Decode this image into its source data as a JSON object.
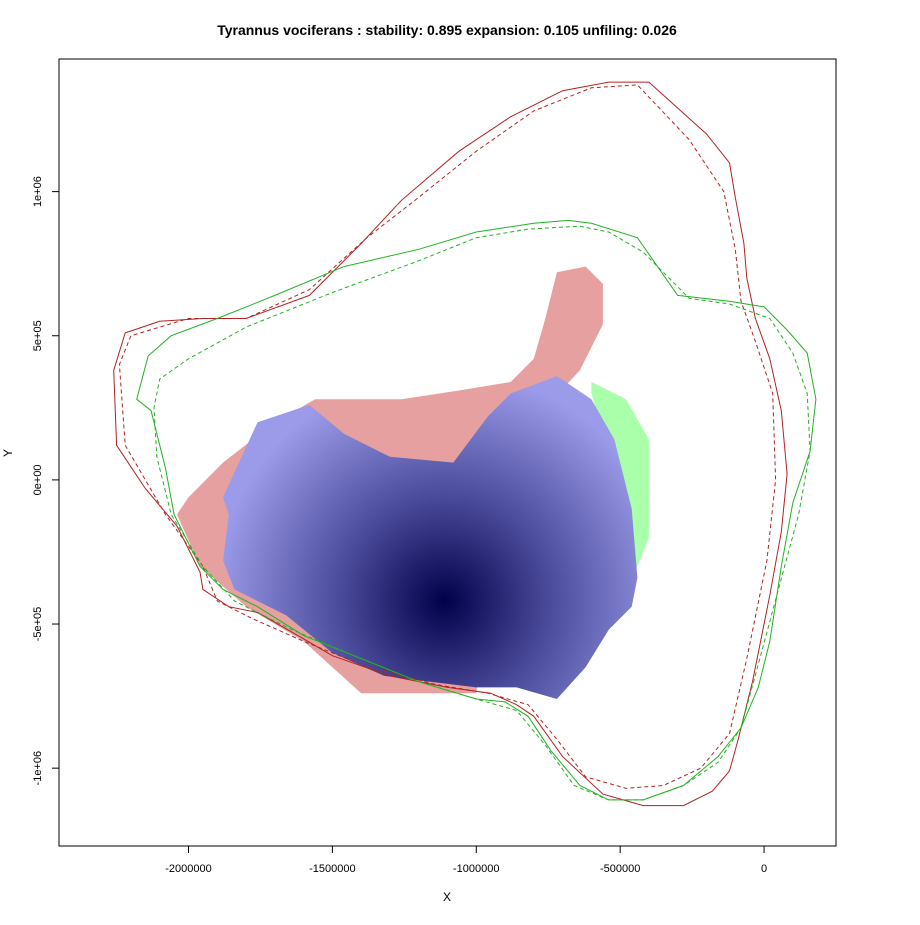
{
  "chart_data": {
    "type": "heatmap",
    "title": "Tyrannus vociferans : stability: 0.895 expansion: 0.105 unfiling: 0.026",
    "xlabel": "X",
    "ylabel": "Y",
    "xlim": [
      -2450000,
      250000
    ],
    "ylim": [
      -1270000,
      1460000
    ],
    "x_ticks": [
      {
        "value": -2000000,
        "label": "-2000000"
      },
      {
        "value": -1500000,
        "label": "-1500000"
      },
      {
        "value": -1000000,
        "label": "-1000000"
      },
      {
        "value": -500000,
        "label": "-500000"
      },
      {
        "value": 0,
        "label": "0"
      }
    ],
    "y_ticks": [
      {
        "value": -1000000,
        "label": "-1e+06"
      },
      {
        "value": -500000,
        "label": "-5e+05"
      },
      {
        "value": 0,
        "label": "0e+00"
      },
      {
        "value": 500000,
        "label": "5e+05"
      },
      {
        "value": 1000000,
        "label": "1e+06"
      }
    ],
    "colors": {
      "expansion": "#e6a0a0",
      "unfilling": "#aaffaa",
      "stability_low": "#9b9bea",
      "stability_high": "#00004a",
      "contour_red": "#b22222",
      "contour_green": "#22b222"
    },
    "regions": {
      "stability_hotspot": {
        "x": -1110000,
        "y": -420000
      },
      "expansion_blob": {
        "x": [
          -2000000,
          -1880000,
          -1700000,
          -1560000,
          -1440000,
          -1260000,
          -1060000,
          -880000,
          -800000,
          -760000,
          -720000,
          -620000,
          -560000,
          -560000,
          -640000,
          -900000,
          -1000000,
          -1400000,
          -1600000,
          -1800000,
          -1960000,
          -2040000
        ],
        "y": [
          -60000,
          60000,
          200000,
          280000,
          280000,
          280000,
          310000,
          340000,
          420000,
          560000,
          720000,
          740000,
          680000,
          540000,
          380000,
          100000,
          -740000,
          -740000,
          -560000,
          -440000,
          -300000,
          -120000
        ]
      },
      "unfilling_strip": {
        "x": [
          -600000,
          -480000,
          -400000,
          -400000,
          -440000,
          -520000,
          -640000,
          -720000,
          -600000,
          -520000,
          -540000,
          -600000
        ],
        "y": [
          340000,
          280000,
          140000,
          -200000,
          -300000,
          -460000,
          -640000,
          -780000,
          -560000,
          -380000,
          100000,
          300000
        ]
      },
      "stability_blob": {
        "x": [
          -1880000,
          -1760000,
          -1580000,
          -1460000,
          -1300000,
          -1080000,
          -960000,
          -880000,
          -720000,
          -600000,
          -520000,
          -460000,
          -440000,
          -460000,
          -540000,
          -620000,
          -720000,
          -860000,
          -1000000,
          -1160000,
          -1320000,
          -1500000,
          -1660000,
          -1840000,
          -1880000,
          -1860000
        ],
        "y": [
          -60000,
          200000,
          260000,
          160000,
          80000,
          60000,
          220000,
          300000,
          360000,
          280000,
          140000,
          -100000,
          -340000,
          -440000,
          -520000,
          -650000,
          -760000,
          -720000,
          -720000,
          -700000,
          -680000,
          -600000,
          -470000,
          -380000,
          -280000,
          -120000
        ]
      }
    },
    "series": [
      {
        "color": "#b22222",
        "dash": "solid",
        "x": [
          -1960000,
          -2040000,
          -2150000,
          -2250000,
          -2260000,
          -2220000,
          -2100000,
          -1950000,
          -1800000,
          -1580000,
          -1400000,
          -1260000,
          -1060000,
          -880000,
          -700000,
          -540000,
          -400000,
          -200000,
          -120000,
          -100000,
          -70000,
          -60000,
          -30000,
          20000,
          60000,
          80000,
          60000,
          20000,
          -40000,
          -90000,
          -120000,
          -180000,
          -280000,
          -420000,
          -560000,
          -700000,
          -800000,
          -860000,
          -950000,
          -1100000,
          -1300000,
          -1500000,
          -1620000,
          -1760000,
          -1860000,
          -1950000
        ],
        "y": [
          -320000,
          -160000,
          -30000,
          120000,
          380000,
          510000,
          550000,
          560000,
          560000,
          640000,
          820000,
          970000,
          1140000,
          1260000,
          1350000,
          1380000,
          1380000,
          1200000,
          1100000,
          980000,
          820000,
          700000,
          560000,
          420000,
          240000,
          20000,
          -180000,
          -400000,
          -700000,
          -900000,
          -1010000,
          -1080000,
          -1130000,
          -1130000,
          -1090000,
          -960000,
          -820000,
          -780000,
          -740000,
          -720000,
          -680000,
          -610000,
          -540000,
          -460000,
          -440000,
          -380000
        ]
      },
      {
        "color": "#b22222",
        "dash": "dashed",
        "x": [
          -1950000,
          -2080000,
          -2220000,
          -2240000,
          -2200000,
          -2000000,
          -1800000,
          -1580000,
          -1380000,
          -1200000,
          -1000000,
          -800000,
          -600000,
          -440000,
          -260000,
          -140000,
          -100000,
          -80000,
          -30000,
          30000,
          40000,
          10000,
          -60000,
          -120000,
          -220000,
          -350000,
          -480000,
          -620000,
          -720000,
          -820000,
          -960000,
          -1140000,
          -1400000,
          -1600000,
          -1780000,
          -1900000
        ],
        "y": [
          -300000,
          -120000,
          120000,
          400000,
          500000,
          560000,
          560000,
          660000,
          840000,
          980000,
          1140000,
          1280000,
          1360000,
          1370000,
          1180000,
          1000000,
          800000,
          620000,
          480000,
          300000,
          0,
          -280000,
          -620000,
          -880000,
          -1000000,
          -1060000,
          -1070000,
          -1030000,
          -900000,
          -780000,
          -740000,
          -710000,
          -640000,
          -560000,
          -480000,
          -420000
        ]
      },
      {
        "color": "#22b222",
        "dash": "solid",
        "x": [
          -1960000,
          -2050000,
          -2080000,
          -2130000,
          -2180000,
          -2140000,
          -2060000,
          -1900000,
          -1700000,
          -1460000,
          -1200000,
          -1000000,
          -800000,
          -680000,
          -600000,
          -440000,
          -300000,
          -120000,
          0,
          80000,
          150000,
          180000,
          160000,
          100000,
          60000,
          20000,
          -20000,
          -80000,
          -160000,
          -280000,
          -420000,
          -540000,
          -640000,
          -740000,
          -820000,
          -900000,
          -1000000,
          -1200000,
          -1400000,
          -1600000,
          -1760000,
          -1880000
        ],
        "y": [
          -300000,
          -120000,
          40000,
          240000,
          280000,
          430000,
          500000,
          560000,
          640000,
          740000,
          800000,
          860000,
          890000,
          900000,
          890000,
          840000,
          640000,
          620000,
          600000,
          520000,
          440000,
          280000,
          100000,
          -80000,
          -300000,
          -560000,
          -720000,
          -860000,
          -960000,
          -1060000,
          -1110000,
          -1110000,
          -1060000,
          -940000,
          -820000,
          -770000,
          -760000,
          -700000,
          -620000,
          -540000,
          -440000,
          -380000
        ]
      },
      {
        "color": "#22b222",
        "dash": "dashed",
        "x": [
          -1950000,
          -2060000,
          -2110000,
          -2120000,
          -2100000,
          -2000000,
          -1800000,
          -1500000,
          -1200000,
          -1000000,
          -820000,
          -640000,
          -540000,
          -420000,
          -260000,
          -120000,
          20000,
          100000,
          150000,
          160000,
          120000,
          50000,
          -20000,
          -80000,
          -160000,
          -280000,
          -420000,
          -540000,
          -660000,
          -760000,
          -860000,
          -1000000,
          -1200000,
          -1400000,
          -1640000,
          -1840000
        ],
        "y": [
          -300000,
          -120000,
          80000,
          250000,
          350000,
          420000,
          530000,
          650000,
          760000,
          840000,
          870000,
          880000,
          860000,
          790000,
          630000,
          610000,
          560000,
          440000,
          300000,
          100000,
          -120000,
          -380000,
          -640000,
          -860000,
          -980000,
          -1060000,
          -1110000,
          -1110000,
          -1060000,
          -920000,
          -800000,
          -760000,
          -700000,
          -620000,
          -520000,
          -420000
        ]
      }
    ]
  }
}
